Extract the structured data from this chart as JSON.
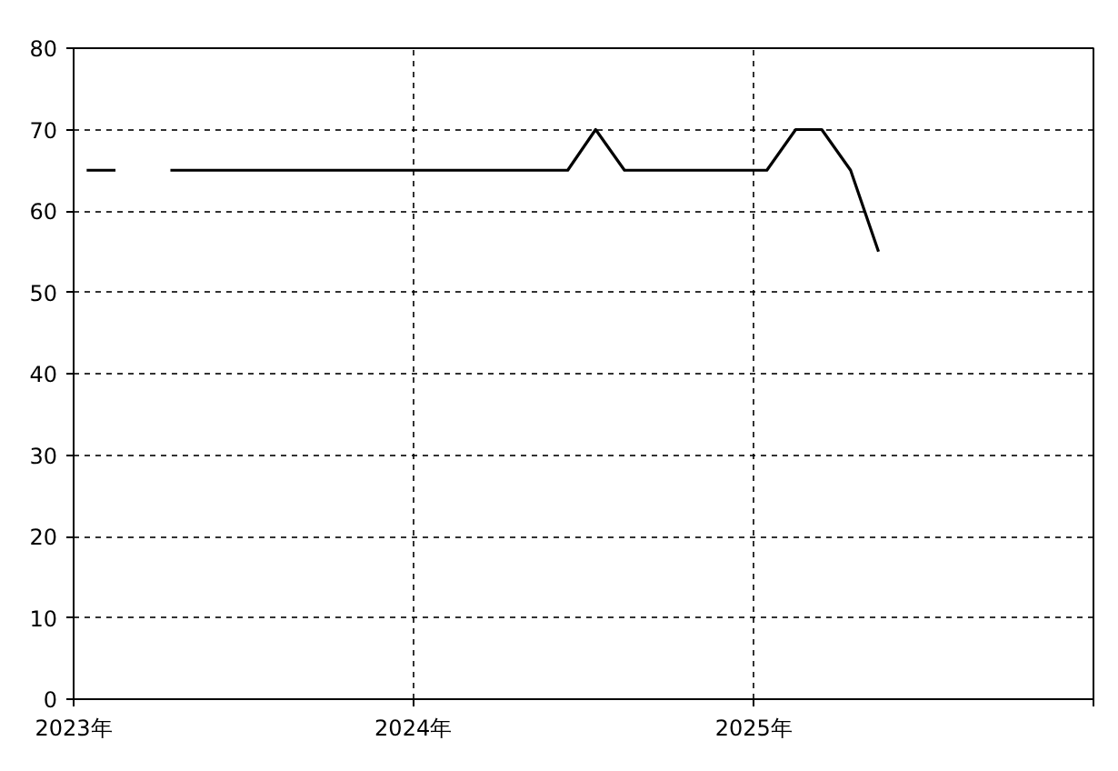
{
  "chart_data": {
    "type": "line",
    "x": [
      "2023-01-15",
      "2023-02-15",
      "2023-03-15",
      "2023-04-15",
      "2023-05-15",
      "2023-06-15",
      "2023-07-15",
      "2023-08-15",
      "2023-09-15",
      "2023-10-15",
      "2023-11-15",
      "2023-12-15",
      "2024-01-15",
      "2024-02-15",
      "2024-03-15",
      "2024-04-15",
      "2024-05-15",
      "2024-06-15",
      "2024-07-15",
      "2024-08-15",
      "2024-09-15",
      "2024-10-15",
      "2024-11-15",
      "2024-12-15",
      "2025-01-15",
      "2025-02-15",
      "2025-03-15",
      "2025-04-15",
      "2025-05-15"
    ],
    "series": [
      {
        "color": "#000000",
        "values": [
          65,
          65,
          null,
          65,
          65,
          65,
          65,
          65,
          65,
          65,
          65,
          65,
          65,
          65,
          65,
          65,
          65,
          65,
          70,
          65,
          65,
          65,
          65,
          65,
          65,
          70,
          70,
          65,
          55
        ]
      }
    ],
    "xlim": [
      "2023-01-01",
      "2026-01-01"
    ],
    "xticks": [
      {
        "value": "2023-01-01",
        "label": "2023年"
      },
      {
        "value": "2024-01-01",
        "label": "2024年"
      },
      {
        "value": "2025-01-01",
        "label": "2025年"
      },
      {
        "value": "2026-01-01",
        "label": null
      }
    ],
    "ylim": [
      0,
      80
    ],
    "yticks": [
      0,
      10,
      20,
      30,
      40,
      50,
      60,
      70,
      80
    ],
    "grid": true,
    "line_style": "solid",
    "marker": "none"
  }
}
